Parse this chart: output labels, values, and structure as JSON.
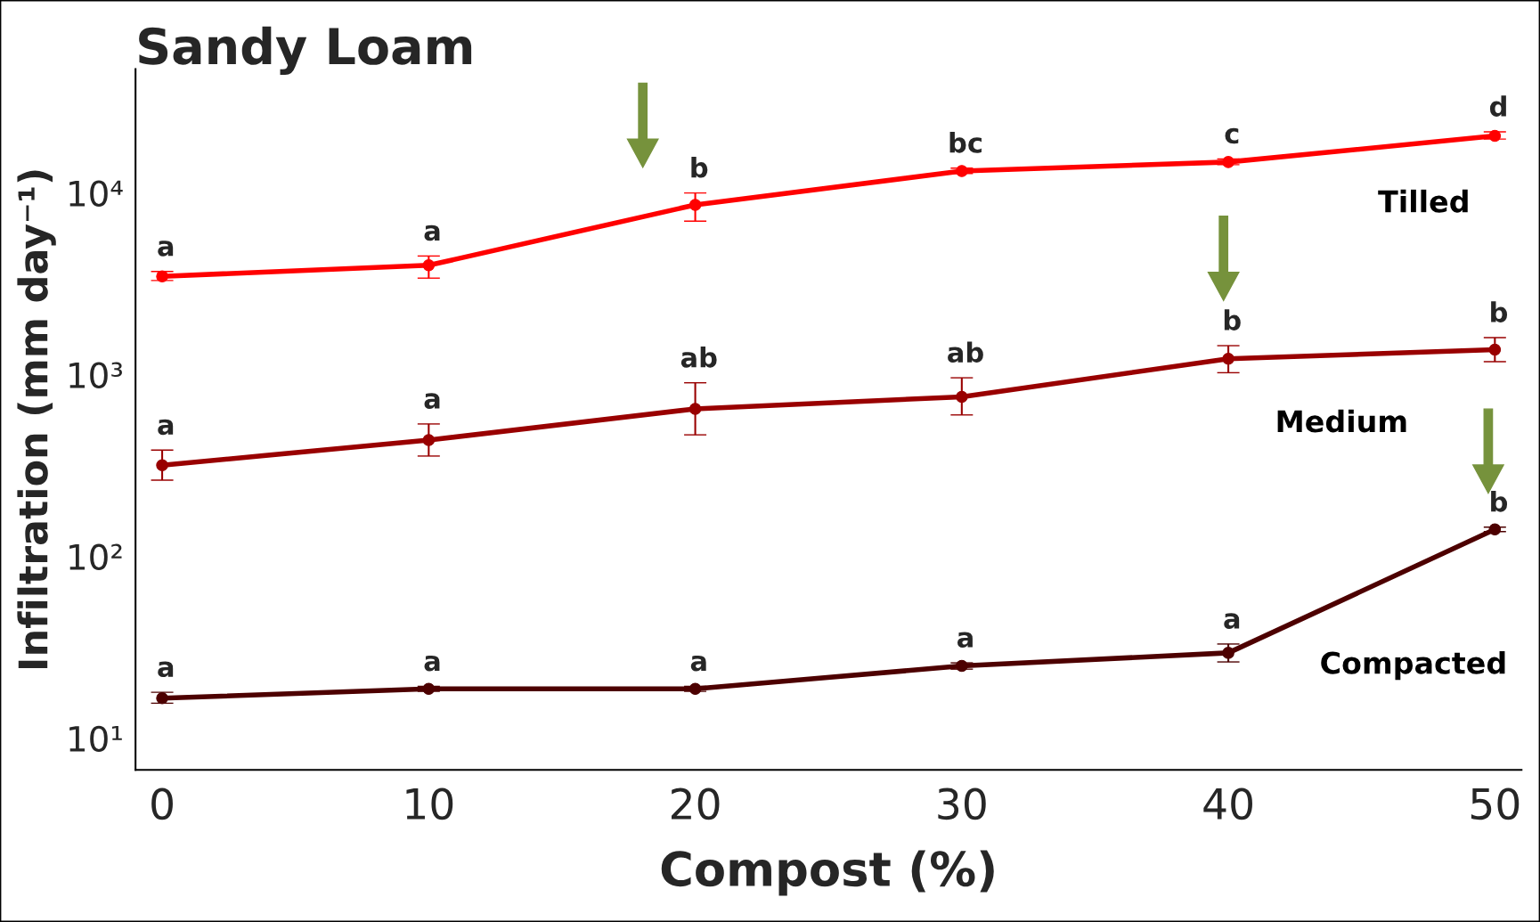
{
  "chart_data": {
    "type": "line",
    "title": "Sandy Loam",
    "xlabel": "Compost (%)",
    "ylabel": "Infiltration (mm day⁻¹)",
    "x": [
      0,
      10,
      20,
      30,
      40,
      50
    ],
    "log": "y",
    "xlim": [
      -1,
      51
    ],
    "ylim": [
      6.7,
      48000
    ],
    "xticks": [
      0,
      10,
      20,
      30,
      40,
      50
    ],
    "yticks": [
      {
        "value": 10,
        "label": "10¹"
      },
      {
        "value": 100,
        "label": "10²"
      },
      {
        "value": 1000,
        "label": "10³"
      },
      {
        "value": 10000,
        "label": "10⁴"
      }
    ],
    "grid": false,
    "legend": false,
    "marker": "circle",
    "line_style": "solid",
    "series": [
      {
        "name": "Tilled",
        "color": "#ff0000",
        "values": [
          3480,
          4000,
          8600,
          13200,
          14800,
          20600
        ],
        "errors": [
          [
            3300,
            3700
          ],
          [
            3400,
            4500
          ],
          [
            7000,
            10000
          ],
          [
            12800,
            13700
          ],
          [
            14300,
            15400
          ],
          [
            19800,
            21700
          ]
        ]
      },
      {
        "name": "Medium",
        "color": "#990000",
        "values": [
          318,
          437,
          649,
          756,
          1225,
          1374
        ],
        "errors": [
          [
            263,
            385
          ],
          [
            357,
            536
          ],
          [
            467,
            903
          ],
          [
            601,
            962
          ],
          [
            1026,
            1445
          ],
          [
            1180,
            1600
          ]
        ]
      },
      {
        "name": "Compacted",
        "color": "#4d0000",
        "values": [
          16.6,
          18.7,
          18.7,
          25,
          29.5,
          141
        ],
        "errors": [
          [
            15.6,
            17.9
          ],
          [
            18.1,
            19.3
          ],
          [
            18.1,
            19.3
          ],
          [
            24,
            26
          ],
          [
            26.3,
            33
          ],
          [
            137,
            145
          ]
        ]
      }
    ],
    "annotations": [
      {
        "text": "a",
        "x": 0,
        "y": 3700
      },
      {
        "text": "a",
        "x": 10,
        "y": 4500
      },
      {
        "text": "b",
        "x": 20,
        "y": 10000
      },
      {
        "text": "bc",
        "x": 30,
        "y": 13700
      },
      {
        "text": "c",
        "x": 40,
        "y": 15400
      },
      {
        "text": "d",
        "x": 50,
        "y": 21700
      },
      {
        "text": "a",
        "x": 0,
        "y": 385
      },
      {
        "text": "a",
        "x": 10,
        "y": 536
      },
      {
        "text": "ab",
        "x": 20,
        "y": 903
      },
      {
        "text": "ab",
        "x": 30,
        "y": 962
      },
      {
        "text": "b",
        "x": 40,
        "y": 1445
      },
      {
        "text": "b",
        "x": 50,
        "y": 1600
      },
      {
        "text": "a",
        "x": 0,
        "y": 17.9
      },
      {
        "text": "a",
        "x": 10,
        "y": 19.3
      },
      {
        "text": "a",
        "x": 20,
        "y": 19.3
      },
      {
        "text": "a",
        "x": 30,
        "y": 26
      },
      {
        "text": "a",
        "x": 40,
        "y": 33
      },
      {
        "text": "b",
        "x": 50,
        "y": 145
      }
    ]
  }
}
